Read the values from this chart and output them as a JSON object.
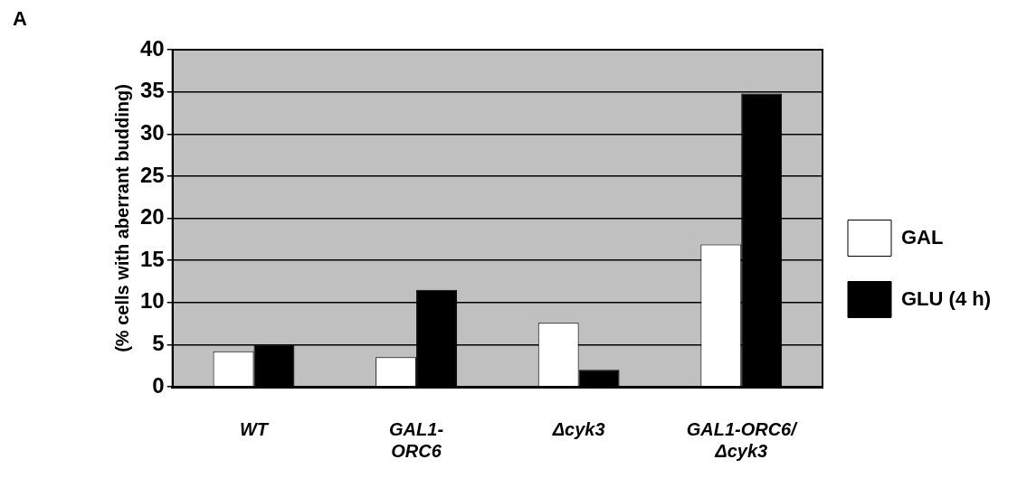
{
  "chart_data": {
    "type": "bar",
    "title": "A",
    "ylabel": "(% cells with aberrant budding)",
    "categories": [
      "WT",
      "GAL1-ORC6",
      "Δcyk3",
      "GAL1-ORC6/Δcyk3"
    ],
    "series": [
      {
        "name": "GAL",
        "color": "#ffffff",
        "values": [
          4.2,
          3.5,
          7.6,
          16.9
        ]
      },
      {
        "name": "GLU (4 h)",
        "color": "#000000",
        "values": [
          5.0,
          11.5,
          2.0,
          34.8
        ]
      }
    ],
    "ylim": [
      0,
      40
    ],
    "yticks": [
      0,
      5,
      10,
      15,
      20,
      25,
      30,
      35,
      40
    ],
    "grid": "y",
    "legend": "right"
  }
}
